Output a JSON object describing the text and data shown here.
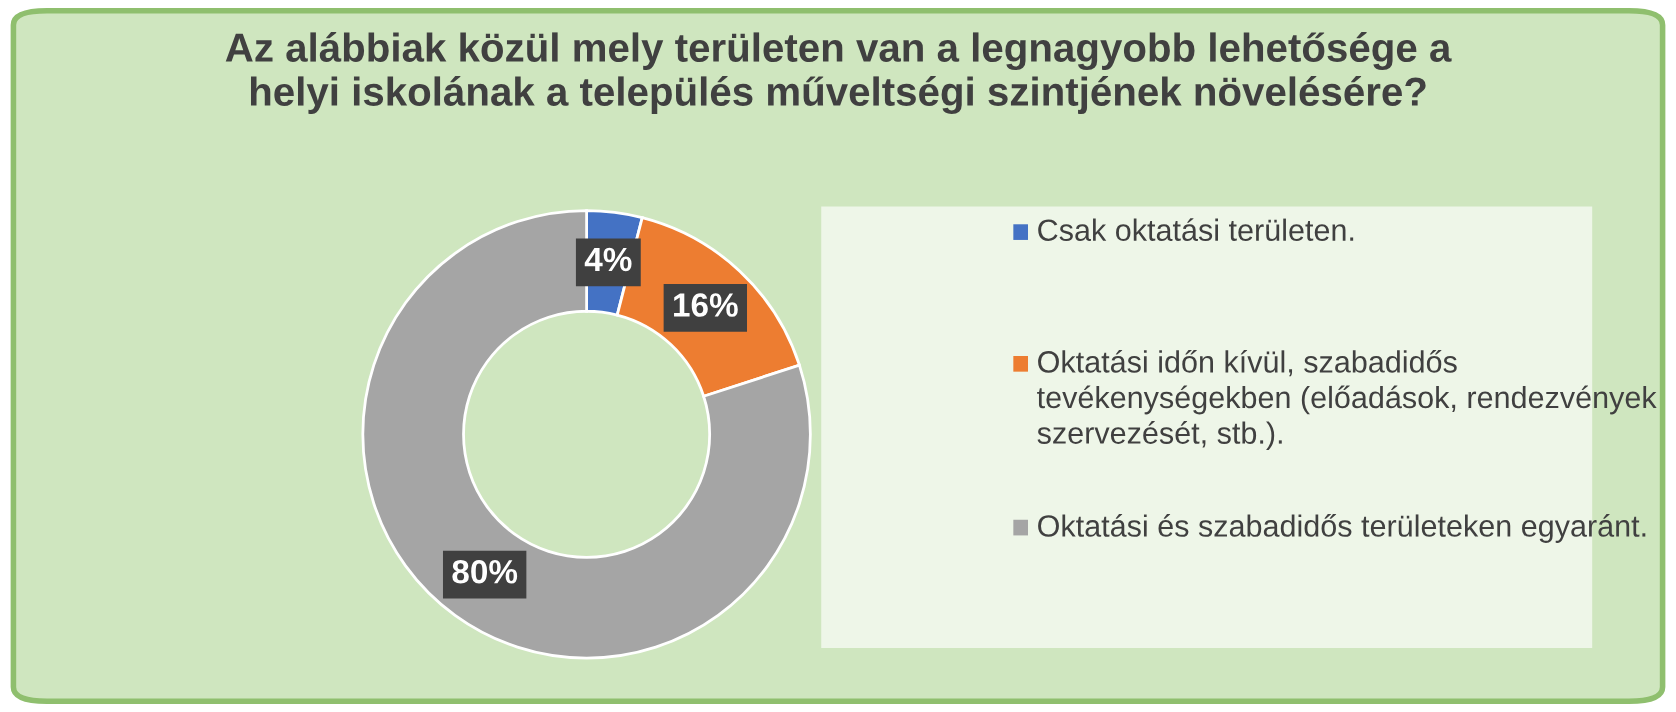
{
  "chart_data": {
    "type": "donut",
    "title": "Az alábbiak közül mely területen van a legnagyobb lehetősége a helyi iskolának a település műveltségi szintjének növelésére?",
    "categories": [
      "Csak oktatási területen.",
      "Oktatási időn kívül, szabadidős tevékenységekben (előadások, rendezvények szervezését, stb.).",
      "Oktatási és szabadidős területeken egyaránt."
    ],
    "values": [
      4,
      16,
      80
    ],
    "colors": [
      "#4472c4",
      "#ed7d31",
      "#a5a5a5"
    ],
    "value_labels": [
      "4%",
      "16%",
      "80%"
    ],
    "legend": "right"
  }
}
